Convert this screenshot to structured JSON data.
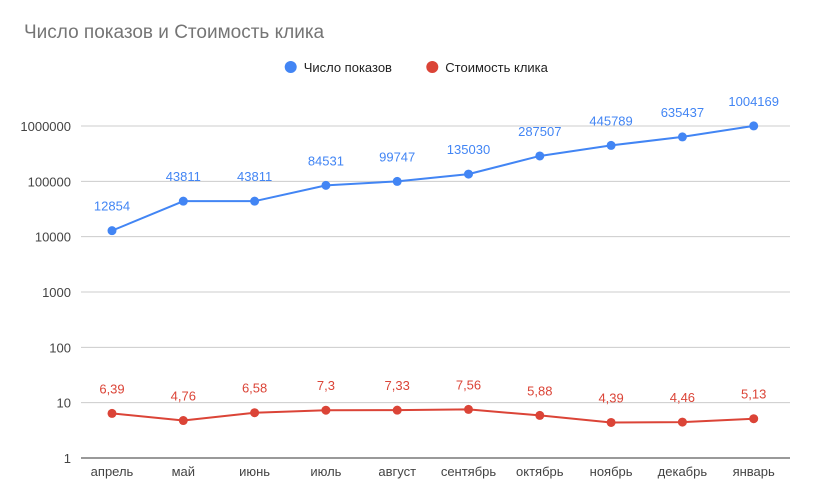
{
  "chart_data": {
    "type": "line",
    "title": "Число показов и Стоимость клика",
    "categories": [
      "апрель",
      "май",
      "июнь",
      "июль",
      "август",
      "сентябрь",
      "октябрь",
      "ноябрь",
      "декабрь",
      "январь"
    ],
    "y_scale": "log",
    "ylim": [
      1,
      1000000
    ],
    "y_ticks": [
      {
        "value": 1,
        "label": "1"
      },
      {
        "value": 10,
        "label": "10"
      },
      {
        "value": 100,
        "label": "100"
      },
      {
        "value": 1000,
        "label": "1000"
      },
      {
        "value": 10000,
        "label": "10000"
      },
      {
        "value": 100000,
        "label": "100000"
      },
      {
        "value": 1000000,
        "label": "1000000"
      }
    ],
    "grid": true,
    "legend_position": "top",
    "series": [
      {
        "name": "Число показов",
        "color": "#4285f4",
        "values": [
          12854,
          43811,
          43811,
          84531,
          99747,
          135030,
          287507,
          445789,
          635437,
          1004169
        ],
        "labels": [
          "12854",
          "43811",
          "43811",
          "84531",
          "99747",
          "135030",
          "287507",
          "445789",
          "635437",
          "1004169"
        ]
      },
      {
        "name": "Стоимость клика",
        "color": "#db4437",
        "values": [
          6.39,
          4.76,
          6.58,
          7.3,
          7.33,
          7.56,
          5.88,
          4.39,
          4.46,
          5.13
        ],
        "labels": [
          "6,39",
          "4,76",
          "6,58",
          "7,3",
          "7,33",
          "7,56",
          "5,88",
          "4,39",
          "4,46",
          "5,13"
        ]
      }
    ]
  }
}
